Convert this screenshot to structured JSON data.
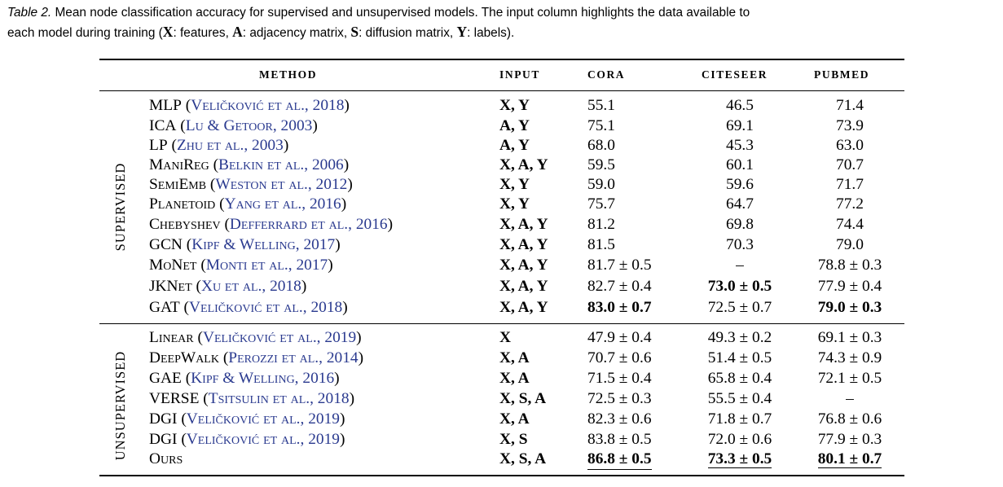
{
  "caption": {
    "label": "Table 2.",
    "line1_text": " Mean node classification accuracy for supervised and unsupervised models. The input column highlights the data available to",
    "line2_prefix": "each model during training (",
    "k1": "X",
    "t1": ": features, ",
    "k2": "A",
    "t2": ": adjacency matrix, ",
    "k3": "S",
    "t3": ": diffusion matrix, ",
    "k4": "Y",
    "t4": ": labels)."
  },
  "headers": {
    "method": "METHOD",
    "input": "INPUT",
    "cora": "CORA",
    "citeseer": "CITESEER",
    "pubmed": "PUBMED"
  },
  "groups": {
    "supervised": "SUPERVISED",
    "unsupervised": "UNSUPERVISED"
  },
  "rows": [
    {
      "name": "MLP",
      "cite": "Veličković et al., 2018",
      "input": "X, Y",
      "cora": "55.1",
      "citeseer": "46.5",
      "pubmed": "71.4"
    },
    {
      "name": "ICA",
      "cite": "Lu & Getoor, 2003",
      "input": "A, Y",
      "cora": "75.1",
      "citeseer": "69.1",
      "pubmed": "73.9"
    },
    {
      "name": "LP",
      "cite": "Zhu et al., 2003",
      "input": "A, Y",
      "cora": "68.0",
      "citeseer": "45.3",
      "pubmed": "63.0"
    },
    {
      "name": "ManiReg",
      "cite": "Belkin et al., 2006",
      "input": "X, A, Y",
      "cora": "59.5",
      "citeseer": "60.1",
      "pubmed": "70.7"
    },
    {
      "name": "SemiEmb",
      "cite": "Weston et al., 2012",
      "input": "X, Y",
      "cora": "59.0",
      "citeseer": "59.6",
      "pubmed": "71.7"
    },
    {
      "name": "Planetoid",
      "cite": "Yang et al., 2016",
      "input": "X, Y",
      "cora": "75.7",
      "citeseer": "64.7",
      "pubmed": "77.2"
    },
    {
      "name": "Chebyshev",
      "cite": "Defferrard et al., 2016",
      "input": "X, A, Y",
      "cora": "81.2",
      "citeseer": "69.8",
      "pubmed": "74.4"
    },
    {
      "name": "GCN",
      "cite": "Kipf & Welling, 2017",
      "input": "X, A, Y",
      "cora": "81.5",
      "citeseer": "70.3",
      "pubmed": "79.0"
    },
    {
      "name": "MoNet",
      "cite": "Monti et al., 2017",
      "input": "X, A, Y",
      "cora": "81.7 ± 0.5",
      "citeseer": "–",
      "pubmed": "78.8 ± 0.3"
    },
    {
      "name": "JKNet",
      "cite": "Xu et al., 2018",
      "input": "X, A, Y",
      "cora": "82.7 ± 0.4",
      "citeseer": "73.0 ± 0.5",
      "pubmed": "77.9 ± 0.4"
    },
    {
      "name": "GAT",
      "cite": "Veličković et al., 2018",
      "input": "X, A, Y",
      "cora": "83.0 ± 0.7",
      "citeseer": "72.5 ± 0.7",
      "pubmed": "79.0 ± 0.3"
    },
    {
      "name": "Linear",
      "cite": "Veličković et al., 2019",
      "input": "X",
      "cora": "47.9 ± 0.4",
      "citeseer": "49.3 ± 0.2",
      "pubmed": "69.1 ± 0.3"
    },
    {
      "name": "DeepWalk",
      "cite": "Perozzi et al., 2014",
      "input": "X, A",
      "cora": "70.7 ± 0.6",
      "citeseer": "51.4 ± 0.5",
      "pubmed": "74.3 ± 0.9"
    },
    {
      "name": "GAE",
      "cite": "Kipf & Welling, 2016",
      "input": "X, A",
      "cora": "71.5 ± 0.4",
      "citeseer": "65.8 ± 0.4",
      "pubmed": "72.1 ± 0.5"
    },
    {
      "name": "VERSE",
      "cite": "Tsitsulin et al., 2018",
      "input": "X, S, A",
      "cora": "72.5 ± 0.3",
      "citeseer": "55.5 ± 0.4",
      "pubmed": "–"
    },
    {
      "name": "DGI",
      "cite": "Veličković et al., 2019",
      "input": "X, A",
      "cora": "82.3 ± 0.6",
      "citeseer": "71.8 ± 0.7",
      "pubmed": "76.8 ± 0.6"
    },
    {
      "name": "DGI",
      "cite": "Veličković et al., 2019",
      "input": "X, S",
      "cora": "83.8 ± 0.5",
      "citeseer": "72.0 ± 0.6",
      "pubmed": "77.9 ± 0.3"
    },
    {
      "name": "Ours",
      "cite": "",
      "input": "X, S, A",
      "cora": "86.8 ± 0.5",
      "citeseer": "73.3 ± 0.5",
      "pubmed": "80.1 ± 0.7"
    }
  ]
}
